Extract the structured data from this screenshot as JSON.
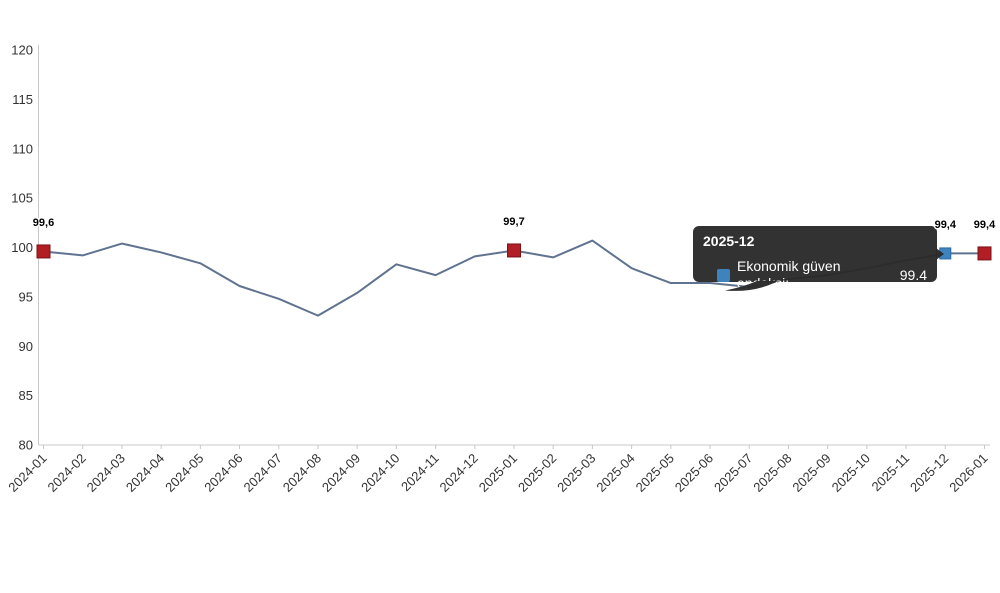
{
  "ui": {
    "tooltip": {
      "title": "2025-12",
      "series_label": "Ekonomik güven endeksi:",
      "value": "99.4"
    }
  },
  "chart_data": {
    "type": "line",
    "title": "",
    "xlabel": "",
    "ylabel": "",
    "ylim": [
      80,
      120
    ],
    "ytick_step": 5,
    "grid": false,
    "legend_position": "none",
    "x_label_rotation": -45,
    "x": [
      "2024-01",
      "2024-02",
      "2024-03",
      "2024-04",
      "2024-05",
      "2024-06",
      "2024-07",
      "2024-08",
      "2024-09",
      "2024-10",
      "2024-11",
      "2024-12",
      "2025-01",
      "2025-02",
      "2025-03",
      "2025-04",
      "2025-05",
      "2025-06",
      "2025-07",
      "2025-08",
      "2025-09",
      "2025-10",
      "2025-11",
      "2025-12",
      "2026-01"
    ],
    "series": [
      {
        "name": "Ekonomik güven endeksi",
        "values": [
          99.6,
          99.2,
          100.4,
          99.5,
          98.4,
          96.1,
          94.8,
          93.1,
          95.4,
          98.3,
          97.2,
          99.1,
          99.7,
          99.0,
          100.7,
          97.9,
          96.4,
          96.4,
          96.0,
          96.8,
          97.2,
          97.9,
          98.7,
          99.4,
          99.4
        ]
      }
    ],
    "marked_points": [
      {
        "index": 0,
        "label": "99,6",
        "marker": "red-square",
        "hovered": false
      },
      {
        "index": 12,
        "label": "99,7",
        "marker": "red-square",
        "hovered": false
      },
      {
        "index": 23,
        "label": "99,4",
        "marker": "blue-square",
        "hovered": true
      },
      {
        "index": 24,
        "label": "99,4",
        "marker": "red-square",
        "hovered": false
      }
    ],
    "colors": {
      "line": "#5f7390",
      "marker_red": "#b11f24",
      "marker_red_border": "#7c1015",
      "marker_blue": "#3e83bd",
      "marker_blue_border": "#2a6ca5",
      "tooltip_bg": "#2a2a2a",
      "tooltip_text": "#ffffff",
      "axis": "#c8c8c8",
      "axis_text": "#333333"
    }
  }
}
